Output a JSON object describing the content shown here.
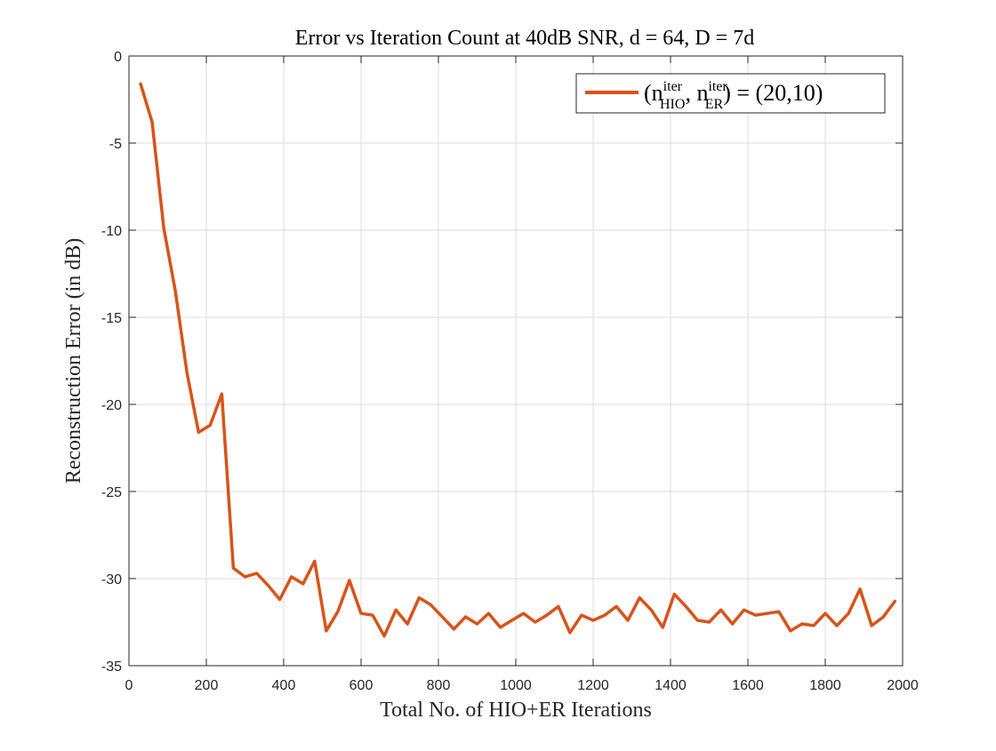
{
  "chart_data": {
    "type": "line",
    "title_text": "Error vs Iteration Count at 40dB SNR, ",
    "title_math_d": "d",
    "title_math_eq1": " = 64, ",
    "title_math_D": "D",
    "title_math_eq2": " = 7",
    "title_math_d2": "d",
    "xlabel": "Total No. of HIO+ER Iterations",
    "ylabel": "Reconstruction Error (in dB)",
    "xlim": [
      0,
      2000
    ],
    "ylim": [
      -35,
      0
    ],
    "xticks": [
      0,
      200,
      400,
      600,
      800,
      1000,
      1200,
      1400,
      1600,
      1800,
      2000
    ],
    "yticks": [
      0,
      -5,
      -10,
      -15,
      -20,
      -25,
      -30,
      -35
    ],
    "grid": true,
    "legend_position": "top-right",
    "series": [
      {
        "name": "(n_HIO^iter, n_ER^iter) = (20,10)",
        "color": "#D95319",
        "x": [
          30,
          60,
          90,
          120,
          150,
          180,
          210,
          240,
          270,
          300,
          330,
          360,
          390,
          420,
          450,
          480,
          510,
          540,
          570,
          600,
          630,
          660,
          690,
          720,
          750,
          780,
          810,
          840,
          870,
          900,
          930,
          960,
          990,
          1020,
          1050,
          1080,
          1110,
          1140,
          1170,
          1200,
          1230,
          1260,
          1290,
          1320,
          1350,
          1380,
          1410,
          1440,
          1470,
          1500,
          1530,
          1560,
          1590,
          1620,
          1650,
          1680,
          1710,
          1740,
          1770,
          1800,
          1830,
          1860,
          1890,
          1920,
          1950,
          1980
        ],
        "y": [
          -1.6,
          -3.8,
          -9.9,
          -13.5,
          -18.2,
          -21.6,
          -21.2,
          -19.4,
          -29.4,
          -29.9,
          -29.7,
          -30.4,
          -31.2,
          -29.9,
          -30.3,
          -29.0,
          -33.0,
          -31.9,
          -30.1,
          -32.0,
          -32.1,
          -33.3,
          -31.8,
          -32.6,
          -31.1,
          -31.5,
          -32.2,
          -32.9,
          -32.2,
          -32.6,
          -32.0,
          -32.8,
          -32.4,
          -32.0,
          -32.5,
          -32.1,
          -31.6,
          -33.1,
          -32.1,
          -32.4,
          -32.1,
          -31.6,
          -32.4,
          -31.1,
          -31.8,
          -32.8,
          -30.9,
          -31.6,
          -32.4,
          -32.5,
          -31.8,
          -32.6,
          -31.8,
          -32.1,
          -32.0,
          -31.9,
          -33.0,
          -32.6,
          -32.7,
          -32.0,
          -32.7,
          -32.0,
          -30.6,
          -32.7,
          -32.2,
          -31.3
        ]
      }
    ]
  },
  "legend": {
    "open": "(",
    "n": "n",
    "sup_iter": "iter",
    "sub_hio": "HIO",
    "comma": ", ",
    "sub_er": "ER",
    "close_eq": ") = (20,10)"
  }
}
